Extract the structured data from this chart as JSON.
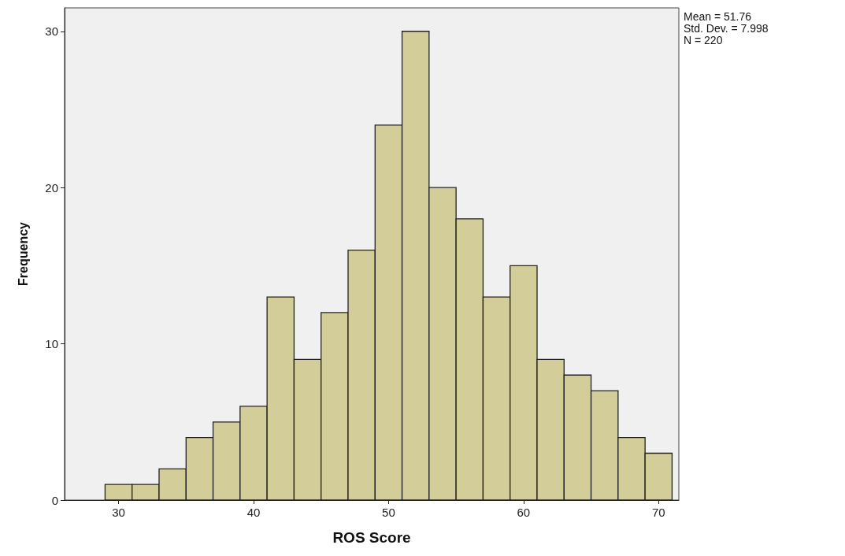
{
  "chart_data": {
    "type": "histogram",
    "xlabel": "ROS Score",
    "ylabel": "Frequency",
    "bins": [
      29,
      31,
      33,
      35,
      37,
      39,
      41,
      43,
      45,
      47,
      49,
      51,
      53,
      55,
      57,
      59,
      61,
      63,
      65,
      67,
      69,
      71
    ],
    "values": [
      1,
      1,
      2,
      4,
      5,
      6,
      13,
      9,
      12,
      16,
      24,
      30,
      20,
      18,
      13,
      15,
      9,
      8,
      7,
      4,
      3
    ],
    "color": "#d3ce99",
    "xlim": [
      26,
      71.5
    ],
    "xticks": [
      30,
      40,
      50,
      60,
      70
    ],
    "ylim": [
      0,
      31.5
    ],
    "yticks": [
      0,
      10,
      20,
      30
    ],
    "grid": false,
    "annotations": [
      "Mean = 51.76",
      "Std. Dev. = 7.998",
      "N = 220"
    ]
  }
}
